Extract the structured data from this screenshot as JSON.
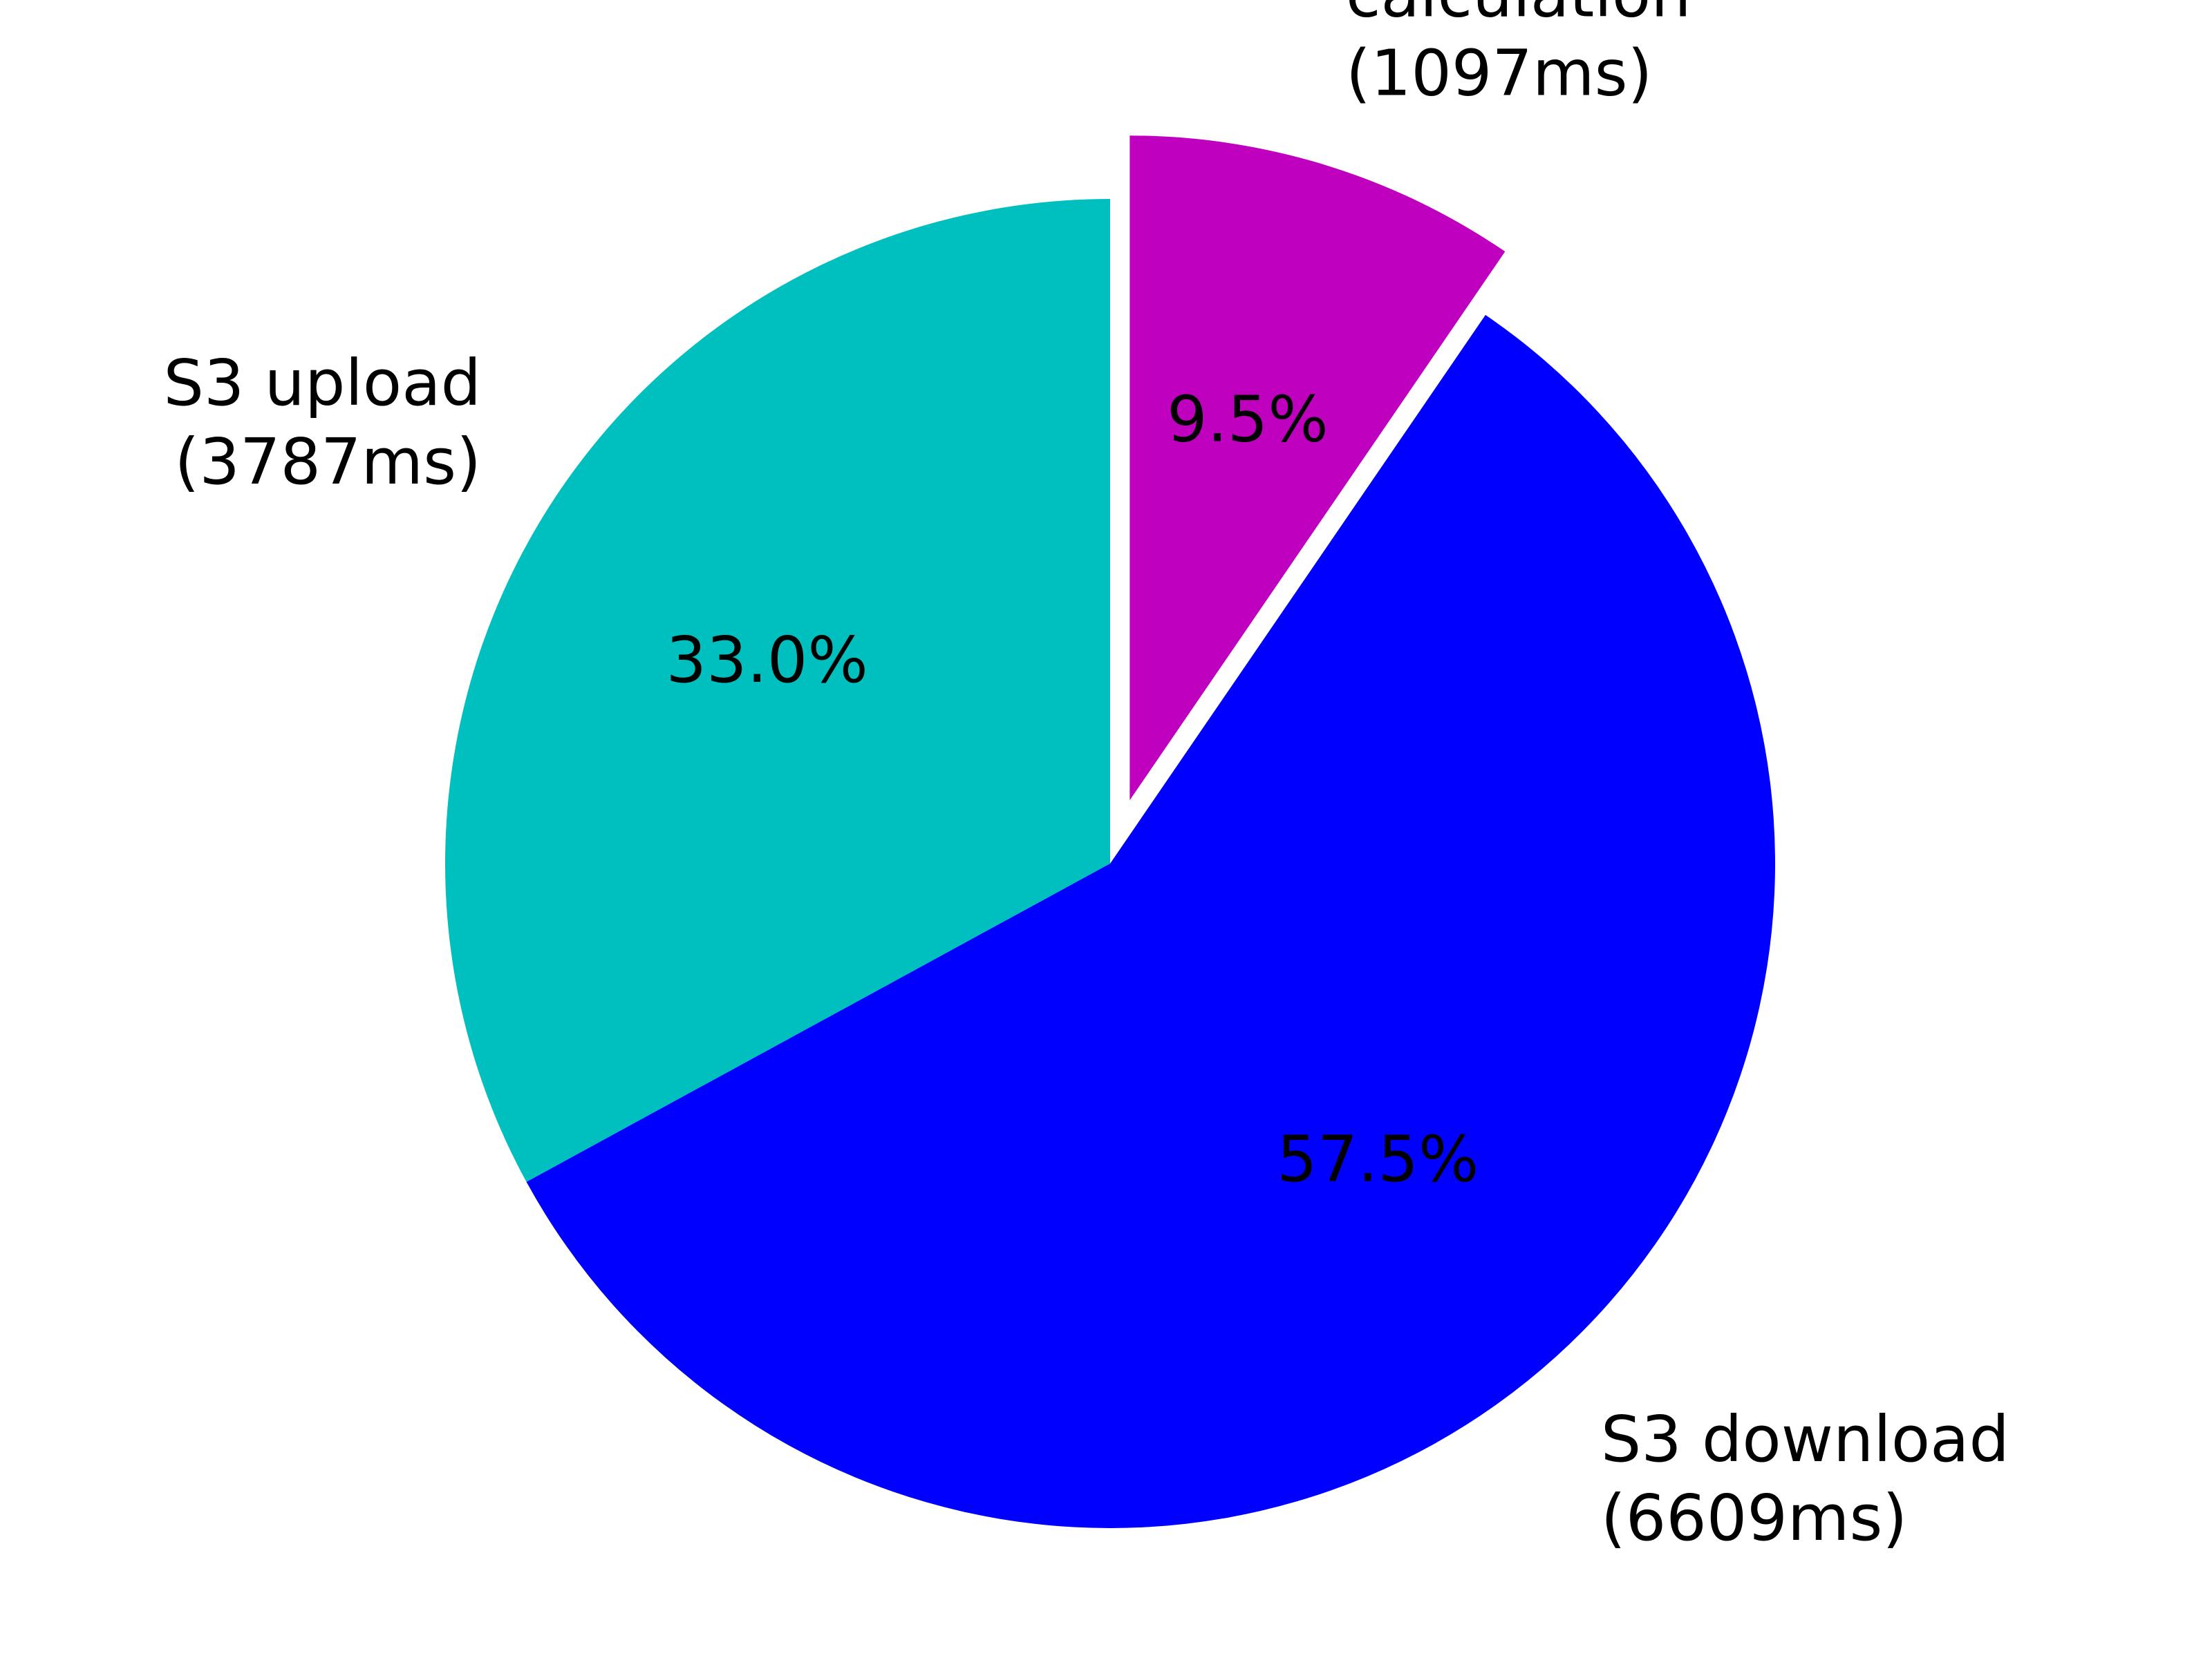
{
  "chart_data": {
    "type": "pie",
    "slices": [
      {
        "name": "S3 upload",
        "value": 3787,
        "value_text": "(3787ms)",
        "percent_text": "33.0%",
        "color": "#00bfbf",
        "exploded": false
      },
      {
        "name": "S3 download",
        "value": 6609,
        "value_text": "(6609ms)",
        "percent_text": "57.5%",
        "color": "#0000ff",
        "exploded": false
      },
      {
        "name": "calculation",
        "value": 1097,
        "value_text": "(1097ms)",
        "percent_text": "9.5%",
        "color": "#bf00bf",
        "exploded": true
      }
    ],
    "start_angle": "top",
    "direction": "counterclockwise"
  }
}
